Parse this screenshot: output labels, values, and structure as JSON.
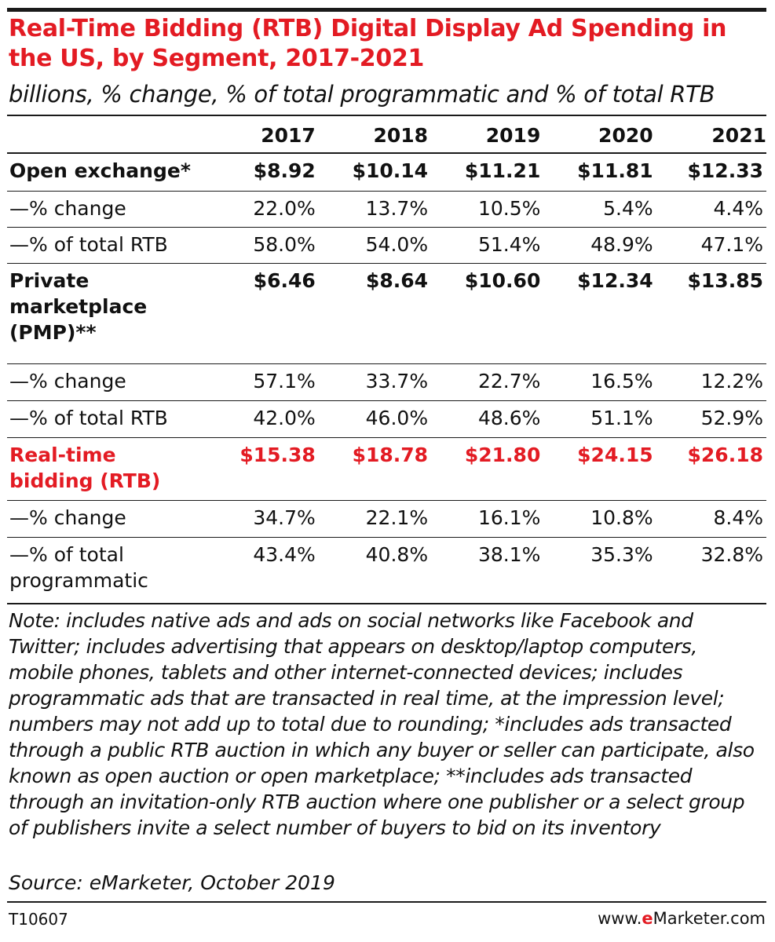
{
  "header": {
    "title": "Real-Time Bidding (RTB) Digital Display Ad Spending in the US, by Segment, 2017-2021",
    "subtitle": "billions, % change, % of total programmatic and % of total RTB"
  },
  "chart_data": {
    "type": "table",
    "title": "Real-Time Bidding (RTB) Digital Display Ad Spending in the US, by Segment, 2017-2021",
    "subtitle": "billions, % change, % of total programmatic and % of total RTB",
    "columns": [
      "2017",
      "2018",
      "2019",
      "2020",
      "2021"
    ],
    "rows": [
      {
        "label": "Open exchange*",
        "style": "bold",
        "values": [
          "$8.92",
          "$10.14",
          "$11.21",
          "$11.81",
          "$12.33"
        ]
      },
      {
        "label": "—% change",
        "style": "normal",
        "values": [
          "22.0%",
          "13.7%",
          "10.5%",
          "5.4%",
          "4.4%"
        ]
      },
      {
        "label": "—% of total RTB",
        "style": "normal",
        "values": [
          "58.0%",
          "54.0%",
          "51.4%",
          "48.9%",
          "47.1%"
        ]
      },
      {
        "label": "Private marketplace (PMP)**",
        "style": "bold",
        "values": [
          "$6.46",
          "$8.64",
          "$10.60",
          "$12.34",
          "$13.85"
        ]
      },
      {
        "label": "—% change",
        "style": "normal",
        "values": [
          "57.1%",
          "33.7%",
          "22.7%",
          "16.5%",
          "12.2%"
        ]
      },
      {
        "label": "—% of total RTB",
        "style": "normal",
        "values": [
          "42.0%",
          "46.0%",
          "48.6%",
          "51.1%",
          "52.9%"
        ]
      },
      {
        "label": "Real-time bidding (RTB)",
        "style": "red",
        "values": [
          "$15.38",
          "$18.78",
          "$21.80",
          "$24.15",
          "$26.18"
        ]
      },
      {
        "label": "—% change",
        "style": "normal",
        "values": [
          "34.7%",
          "22.1%",
          "16.1%",
          "10.8%",
          "8.4%"
        ]
      },
      {
        "label": "—% of total programmatic",
        "style": "normal",
        "values": [
          "43.4%",
          "40.8%",
          "38.1%",
          "35.3%",
          "32.8%"
        ]
      }
    ]
  },
  "footer": {
    "note": "Note: includes native ads and ads on social networks like Facebook and Twitter; includes advertising that appears on desktop/laptop computers, mobile phones, tablets and other internet-connected devices; includes programmatic ads that are transacted in real time, at the impression level; numbers may not add up to total due to rounding; *includes ads transacted through a public RTB auction in which any buyer or seller can participate, also known as open auction or open marketplace; **includes ads transacted through an invitation-only RTB auction where one publisher or a select group of publishers invite a select number of buyers to bid on its inventory",
    "source": "Source: eMarketer, October 2019",
    "chart_id": "T10607",
    "site_prefix": "www.",
    "site_brand": "e",
    "site_suffix": "Marketer.com"
  },
  "colors": {
    "accent": "#e31b23",
    "text": "#111111",
    "rule": "#1a1a1a"
  }
}
